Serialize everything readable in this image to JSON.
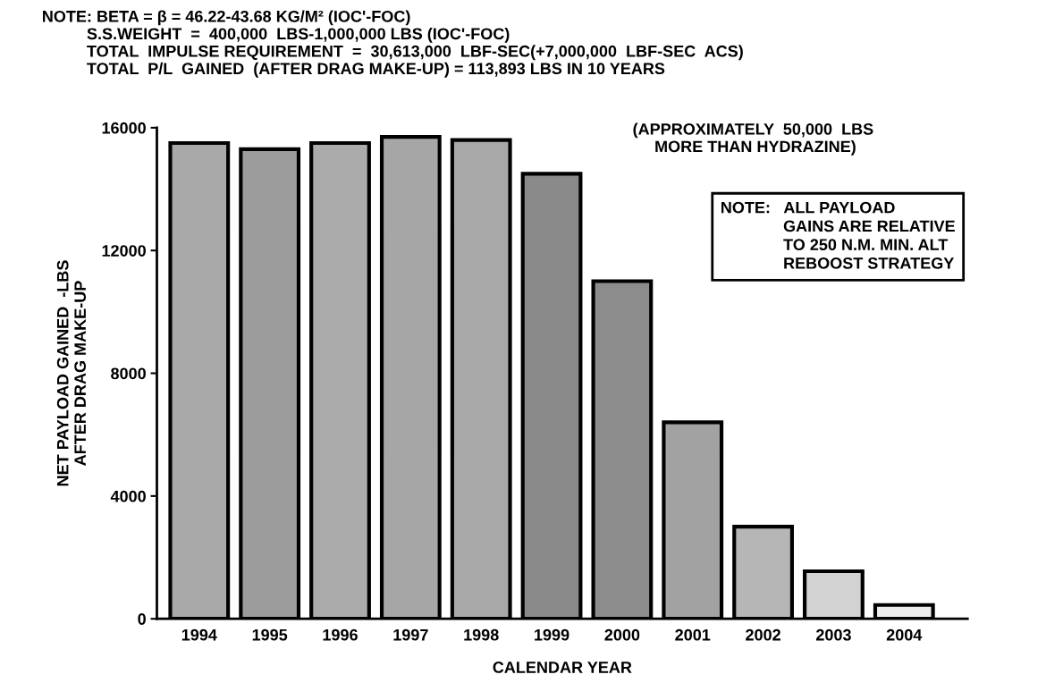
{
  "chart_data": {
    "type": "bar",
    "categories": [
      "1994",
      "1995",
      "1996",
      "1997",
      "1998",
      "1999",
      "2000",
      "2001",
      "2002",
      "2003",
      "2004"
    ],
    "values": [
      15500,
      15300,
      15500,
      15700,
      15600,
      14500,
      11000,
      6400,
      3000,
      1550,
      450
    ],
    "colors": [
      "#a9a9a9",
      "#9c9c9c",
      "#ababab",
      "#a6a6a6",
      "#a9a9a9",
      "#8a8a8a",
      "#8c8c8c",
      "#a2a2a2",
      "#b6b6b6",
      "#d2d2d2",
      "#ececec"
    ],
    "xlabel": "CALENDAR YEAR",
    "ylabel": "NET PAYLOAD GAINED  -LBS\nAFTER DRAG MAKE-UP",
    "ylim": [
      0,
      16000
    ],
    "yticks": [
      0,
      4000,
      8000,
      12000,
      16000
    ],
    "grid": false,
    "legend": false,
    "annotations": [
      "NOTE: BETA = β = 46.22-43.68 KG/M² (IOC'-FOC)\n          S.S.WEIGHT  =  400,000  LBS-1,000,000 LBS (IOC'-FOC)\n          TOTAL  IMPULSE REQUIREMENT  =  30,613,000  LBF-SEC(+7,000,000  LBF-SEC  ACS)\n          TOTAL  P/L  GAINED  (AFTER DRAG MAKE-UP) = 113,893 LBS IN 10 YEARS",
      "(APPROXIMATELY  50,000  LBS\n MORE THAN HYDRAZINE)",
      "NOTE:   ALL PAYLOAD\n              GAINS ARE RELATIVE\n              TO 250 N.M. MIN. ALT\n              REBOOST STRATEGY"
    ]
  }
}
